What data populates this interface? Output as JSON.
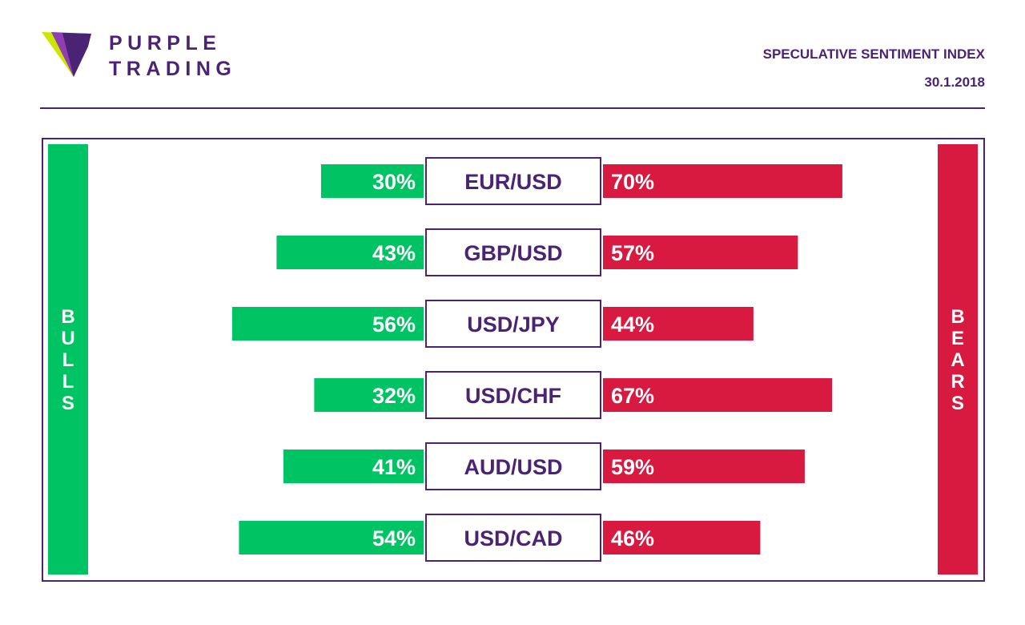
{
  "brand": {
    "line1": "PURPLE",
    "line2": "TRADING",
    "mark_colors": [
      "#4b2375",
      "#8e3fb0",
      "#cde600"
    ]
  },
  "header": {
    "title": "SPECULATIVE SENTIMENT INDEX",
    "date": "30.1.2018"
  },
  "labels": {
    "bulls": "BULLS",
    "bears": "BEARS"
  },
  "colors": {
    "bull": "#00c464",
    "bear": "#d81a40",
    "accent": "#4b2375"
  },
  "chart_data": {
    "type": "bar",
    "orientation": "horizontal-diverging",
    "categories": [
      "EUR/USD",
      "GBP/USD",
      "USD/JPY",
      "USD/CHF",
      "AUD/USD",
      "USD/CAD"
    ],
    "series": [
      {
        "name": "BULLS",
        "values": [
          30,
          43,
          56,
          32,
          41,
          54
        ],
        "labels": [
          "30%",
          "43%",
          "56%",
          "32%",
          "41%",
          "54%"
        ]
      },
      {
        "name": "BEARS",
        "values": [
          70,
          57,
          44,
          67,
          59,
          46
        ],
        "labels": [
          "70%",
          "57%",
          "44%",
          "67%",
          "59%",
          "46%"
        ]
      }
    ],
    "unit": "%"
  }
}
